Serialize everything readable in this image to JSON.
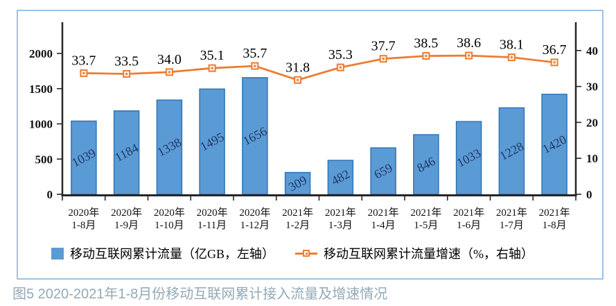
{
  "caption": "图5 2020-2021年1-8月份移动互联网累计接入流量及增速情况",
  "legend": [
    {
      "label": "移动互联网累计流量（亿GB，左轴）"
    },
    {
      "label": "移动互联网累计流量增速（%，右轴）"
    }
  ],
  "colors": {
    "bar_fill": "#5B9BD5",
    "bar_border": "#2E74B5",
    "bar_label": "#1F3864",
    "line": "#ED7D31",
    "marker_fill": "#FDF3EC",
    "axis": "#262626",
    "text": "#111111",
    "card_border": "#9DC3E6",
    "caption": "#93A9B6"
  },
  "chart_data": {
    "type": "bar",
    "title": "",
    "categories": [
      [
        "2020年",
        "1-8月"
      ],
      [
        "2020年",
        "1-9月"
      ],
      [
        "2020年",
        "1-10月"
      ],
      [
        "2020年",
        "1-11月"
      ],
      [
        "2020年",
        "1-12月"
      ],
      [
        "2021年",
        "1-2月"
      ],
      [
        "2021年",
        "1-3月"
      ],
      [
        "2021年",
        "1-4月"
      ],
      [
        "2021年",
        "1-5月"
      ],
      [
        "2021年",
        "1-6月"
      ],
      [
        "2021年",
        "1-7月"
      ],
      [
        "2021年",
        "1-8月"
      ]
    ],
    "series": [
      {
        "name": "移动互联网累计流量（亿GB，左轴）",
        "type": "bar",
        "axis": "left",
        "values": [
          1039,
          1184,
          1338,
          1495,
          1656,
          309,
          482,
          659,
          846,
          1033,
          1228,
          1420
        ]
      },
      {
        "name": "移动互联网累计流量增速（%，右轴）",
        "type": "line",
        "axis": "right",
        "values": [
          33.7,
          33.5,
          34.0,
          35.1,
          35.7,
          31.8,
          35.3,
          37.7,
          38.5,
          38.6,
          38.1,
          36.7
        ],
        "label_decimals": 1
      }
    ],
    "left_axis": {
      "ticks": [
        0,
        500,
        1000,
        1500,
        2000
      ],
      "range": [
        0,
        2450
      ]
    },
    "right_axis": {
      "ticks": [
        0,
        10,
        20,
        30,
        40
      ],
      "range": [
        0,
        48
      ]
    },
    "grid": false,
    "legend_position": "bottom",
    "xlabel": "",
    "ylabel_left": "亿GB",
    "ylabel_right": "%"
  }
}
